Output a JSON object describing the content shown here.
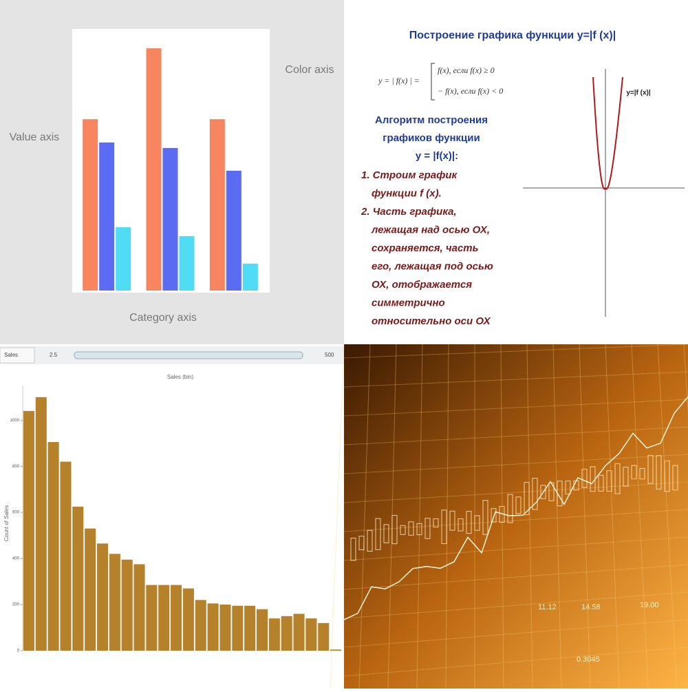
{
  "chart_data": [
    {
      "type": "bar",
      "y_label": "Value axis",
      "x_label": "Category axis",
      "legend_title": "Color axis",
      "categories": [
        null,
        null,
        null
      ],
      "series": [
        {
          "color": "#f7855f",
          "values": [
            65.5,
            92.6,
            65.5
          ]
        },
        {
          "color": "#5c6cf2",
          "values": [
            56.6,
            54.5,
            45.8
          ]
        },
        {
          "color": "#50dcf5",
          "values": [
            24.2,
            20.8,
            10.3
          ]
        }
      ],
      "ylim": [
        0,
        100
      ]
    },
    {
      "type": "bar",
      "title": "Sales (bin)",
      "y_label": "Count of Sales",
      "color": "#b5812a",
      "filter": {
        "label": "Sales",
        "min": 2.5,
        "max": 500
      },
      "categories": [
        null,
        null,
        null,
        null,
        null,
        null,
        null,
        null,
        null,
        null,
        null,
        null,
        null,
        null,
        null,
        null,
        null,
        null,
        null,
        null,
        null,
        null,
        null,
        null,
        null,
        null
      ],
      "values": [
        1040,
        1100,
        905,
        820,
        625,
        530,
        465,
        420,
        395,
        375,
        285,
        285,
        285,
        270,
        220,
        205,
        200,
        195,
        195,
        180,
        140,
        150,
        160,
        140,
        120,
        5
      ],
      "ylim": [
        0,
        1150
      ],
      "yticks": [
        0,
        200,
        400,
        600,
        800,
        1000
      ],
      "grid": false
    }
  ],
  "slide": {
    "title": "Построение графика функции y=|f (x)|",
    "formula": {
      "lhs": "y = | f(x) | =",
      "case1": "f(x), если f(x) ≥ 0",
      "case2": "− f(x), если f(x) < 0"
    },
    "heading": [
      "Алгоритм построения",
      "графиков функции",
      "y = |f(x)|:"
    ],
    "steps": [
      "1. Строим график",
      "функции   f (x).",
      "2. Часть графика,",
      "лежащая над  осью ОХ,",
      "сохраняется, часть",
      "его, лежащая под осью",
      "ОХ, отображается",
      "симметрично",
      "относительно оси ОХ"
    ],
    "graph_label": "y=|f (x)|"
  },
  "photo": {
    "labels": [
      "11.12",
      "14.58",
      "19.00",
      "0.3045"
    ]
  }
}
